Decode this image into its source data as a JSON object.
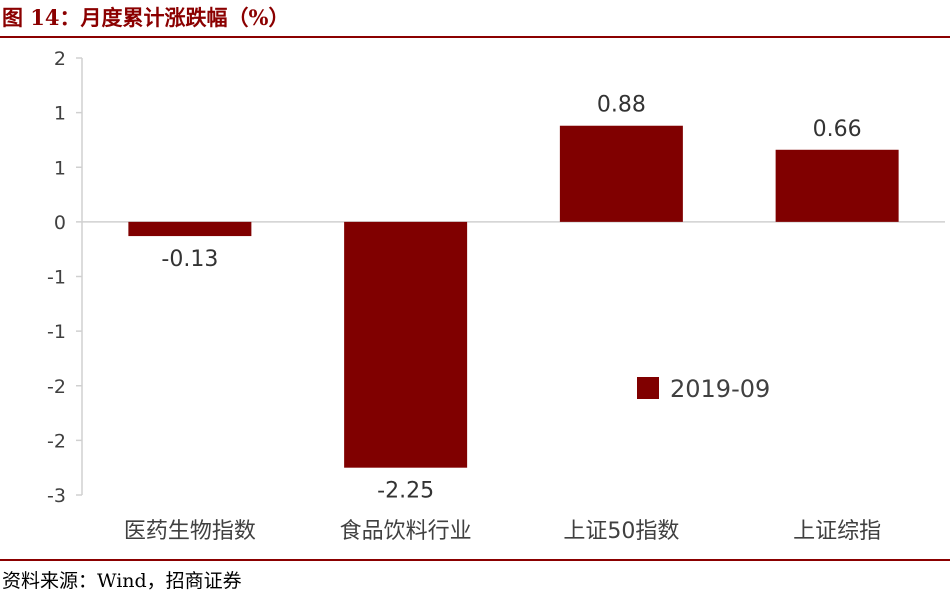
{
  "title": "图 14：月度累计涨跌幅（%）",
  "source": "资料来源：Wind，招商证券",
  "colors": {
    "bar": "#800000",
    "accent": "#8b0000",
    "axis": "#d0d0d0"
  },
  "chart_data": {
    "type": "bar",
    "categories": [
      "医药生物指数",
      "食品饮料行业",
      "上证50指数",
      "上证综指"
    ],
    "series": [
      {
        "name": "2019-09",
        "values": [
          -0.13,
          -2.25,
          0.88,
          0.66
        ],
        "labels": [
          "-0.13",
          "-2.25",
          "0.88",
          "0.66"
        ]
      }
    ],
    "ylim": [
      -2.5,
      1.5
    ],
    "yticks": [
      1.5,
      1.0,
      0.5,
      0.0,
      -0.5,
      -1.0,
      -1.5,
      -2.0,
      -2.5
    ],
    "ytick_labels": [
      "2",
      "1",
      "1",
      "0",
      "-1",
      "-1",
      "-2",
      "-2",
      "-3"
    ],
    "grid": false,
    "legend": "bottom-right",
    "title": "",
    "xlabel": "",
    "ylabel": ""
  }
}
